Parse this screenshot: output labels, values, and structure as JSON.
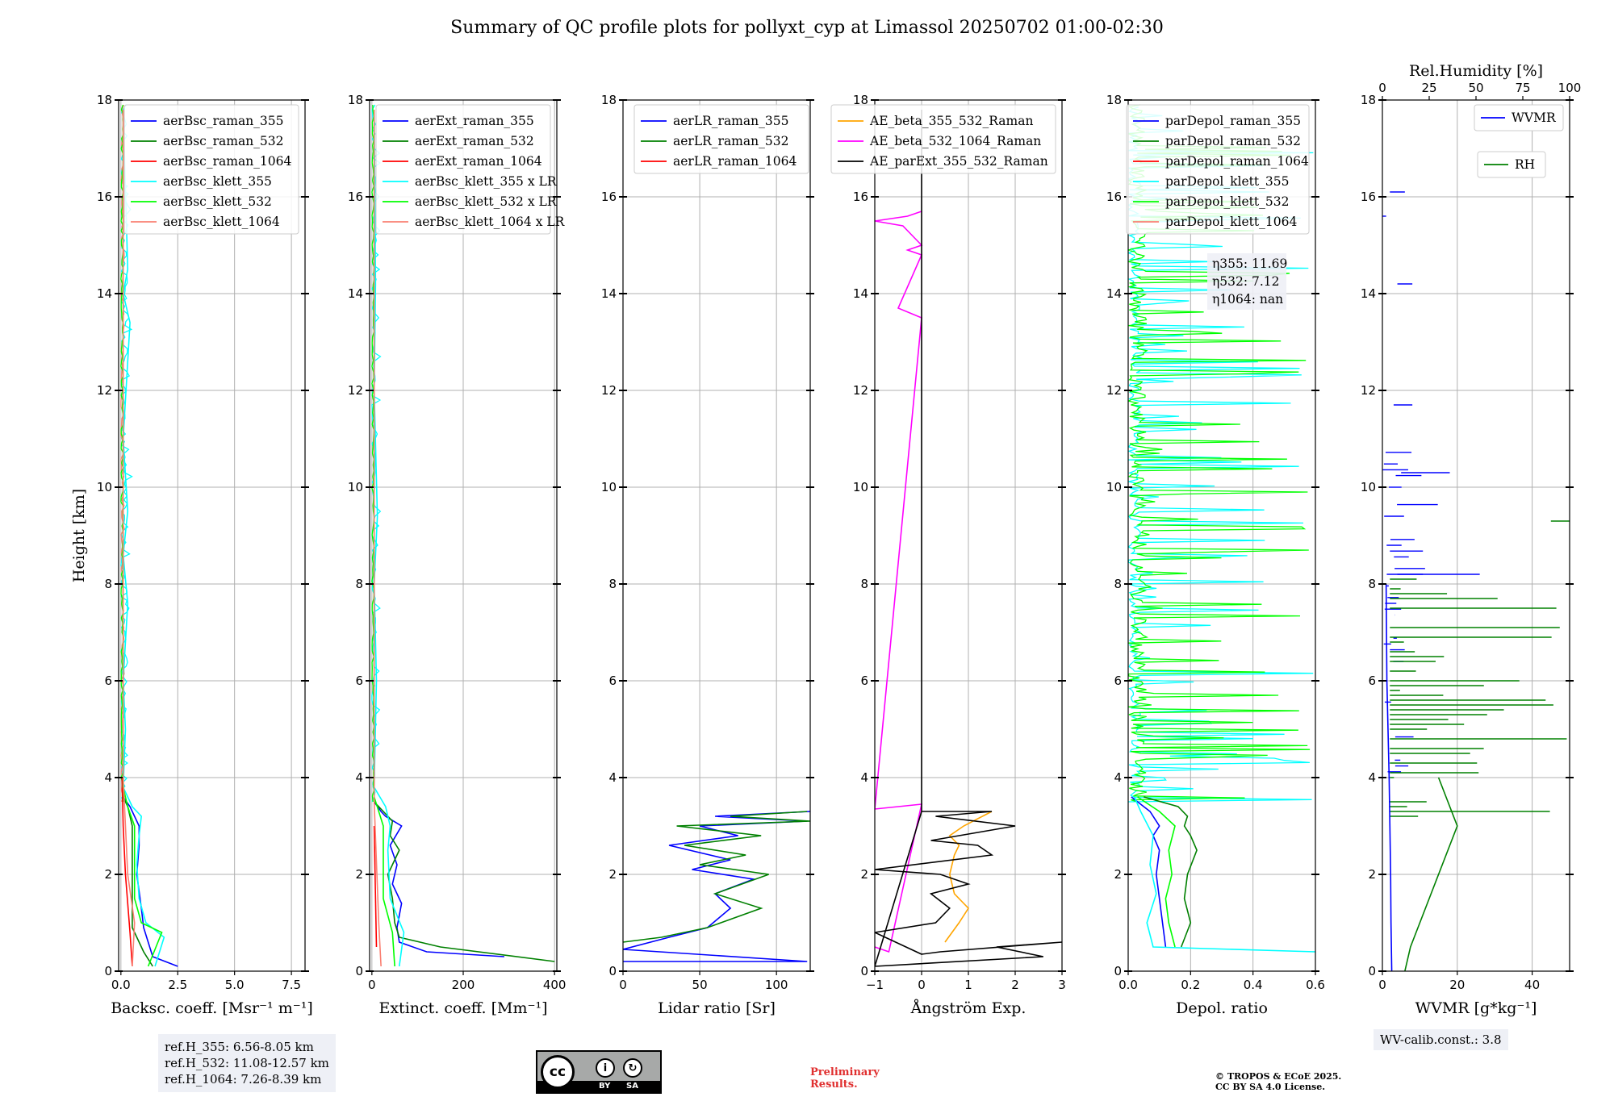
{
  "title": "Summary of QC profile plots for pollyxt_cyp at Limassol 20250702 01:00-02:30",
  "ref_heights": [
    "ref.H_355: 6.56-8.05 km",
    "ref.H_532: 11.08-12.57 km",
    "ref.H_1064: 7.26-8.39 km"
  ],
  "wv_calib": "WV-calib.const.: 3.8",
  "preliminary": [
    "Preliminary",
    "Results."
  ],
  "copyright": [
    "© TROPOS & ECoE 2025.",
    "CC BY SA 4.0 License."
  ],
  "license_badge": {
    "by": "BY",
    "sa": "SA",
    "cc": "cc"
  },
  "colors": {
    "blue": "#0000ff",
    "green": "#008000",
    "red": "#ff0000",
    "cyan": "#00ffff",
    "lime": "#00ff00",
    "salmon": "#fa8072",
    "orange": "#ffa500",
    "magenta": "#ff00ff",
    "black": "#000000"
  },
  "chart_data": [
    {
      "type": "line",
      "ylabel": "Height [km]",
      "ylim": [
        0,
        18
      ],
      "yticks": [
        0,
        2,
        4,
        6,
        8,
        10,
        12,
        14,
        16,
        18
      ],
      "xlabel": "Backsc. coeff. [Msr⁻¹ m⁻¹]",
      "xlim": [
        -0.1,
        8.1
      ],
      "xticks": [
        0,
        2.5,
        5.0,
        7.5
      ],
      "xtick_labels": [
        "0.0",
        "2.5",
        "5.0",
        "7.5"
      ],
      "grid": true,
      "legend": "top-right",
      "series": [
        {
          "name": "aerBsc_raman_355",
          "color": "blue",
          "x": [
            2.5,
            1.4,
            1.2,
            1.0,
            0.9,
            0.7,
            0.8,
            0.8,
            0.7,
            0.6,
            0.4,
            0.1
          ],
          "y": [
            0.1,
            0.3,
            0.6,
            0.9,
            1.3,
            2.0,
            2.6,
            3.0,
            3.1,
            3.2,
            3.4,
            3.6
          ]
        },
        {
          "name": "aerBsc_raman_532",
          "color": "green",
          "x": [
            1.4,
            1.0,
            0.5,
            0.5,
            0.5,
            0.5,
            0.5,
            0.4,
            0.3,
            0.1
          ],
          "y": [
            0.1,
            0.4,
            0.9,
            1.3,
            2.0,
            2.6,
            3.0,
            3.2,
            3.4,
            3.6
          ]
        },
        {
          "name": "aerBsc_raman_1064",
          "color": "red",
          "x": [
            0.5,
            0.4,
            0.2,
            0.1,
            0.05
          ],
          "y": [
            0.1,
            0.8,
            2.0,
            3.0,
            4.0
          ]
        },
        {
          "name": "aerBsc_klett_355",
          "color": "cyan",
          "x": [
            1.5,
            1.9,
            1.1,
            0.8,
            0.7,
            0.8,
            0.9,
            0.5,
            0.1,
            0.2,
            0.1,
            0.3,
            0.1,
            0.3,
            0.1,
            0.4,
            0.1,
            0.3,
            0.1
          ],
          "y": [
            0.1,
            0.7,
            1.0,
            1.5,
            2.2,
            2.8,
            3.2,
            3.4,
            3.8,
            5.0,
            6.0,
            7.6,
            8.6,
            9.5,
            11.0,
            13.4,
            14.0,
            14.5,
            17.8
          ]
        },
        {
          "name": "aerBsc_klett_532",
          "color": "lime",
          "x": [
            1.2,
            1.8,
            0.9,
            0.6,
            0.6,
            0.6,
            0.3,
            0.1,
            0.1
          ],
          "y": [
            0.1,
            0.8,
            1.0,
            1.5,
            2.5,
            3.0,
            3.4,
            3.8,
            17.8
          ]
        },
        {
          "name": "aerBsc_klett_1064",
          "color": "salmon",
          "x": [
            0.5,
            0.6,
            0.3,
            0.2,
            0.1,
            0.1
          ],
          "y": [
            0.1,
            1.0,
            2.0,
            3.0,
            4.0,
            17.8
          ]
        }
      ]
    },
    {
      "type": "line",
      "ylim": [
        0,
        18
      ],
      "yticks": [
        0,
        2,
        4,
        6,
        8,
        10,
        12,
        14,
        16,
        18
      ],
      "xlabel": "Extinct. coeff. [Mm⁻¹]",
      "xlim": [
        -5,
        405
      ],
      "xticks": [
        0,
        200,
        400
      ],
      "xtick_labels": [
        "0",
        "200",
        "400"
      ],
      "grid": true,
      "legend": "top-right",
      "series": [
        {
          "name": "aerExt_raman_355",
          "color": "blue",
          "x": [
            290,
            120,
            60,
            55,
            65,
            45,
            55,
            40,
            65,
            30,
            20,
            5
          ],
          "y": [
            0.3,
            0.4,
            0.6,
            0.9,
            1.4,
            1.8,
            2.2,
            2.6,
            3.0,
            3.2,
            3.3,
            3.5
          ]
        },
        {
          "name": "aerExt_raman_532",
          "color": "green",
          "x": [
            400,
            150,
            60,
            50,
            45,
            35,
            60,
            40,
            45,
            25,
            5
          ],
          "y": [
            0.2,
            0.5,
            0.7,
            1.0,
            1.5,
            2.0,
            2.5,
            2.8,
            3.1,
            3.3,
            3.5
          ]
        },
        {
          "name": "aerExt_raman_1064",
          "color": "red",
          "x": [
            10,
            5
          ],
          "y": [
            0.5,
            3.0
          ]
        },
        {
          "name": "aerBsc_klett_355 x LR",
          "color": "cyan",
          "x": [
            60,
            70,
            40,
            35,
            40,
            30,
            5,
            10,
            5,
            12,
            5,
            8,
            5
          ],
          "y": [
            0.1,
            0.8,
            1.5,
            2.5,
            3.0,
            3.4,
            3.8,
            6.0,
            8.0,
            9.4,
            12.0,
            14.2,
            17.8
          ]
        },
        {
          "name": "aerBsc_klett_532 x LR",
          "color": "lime",
          "x": [
            50,
            45,
            25,
            25,
            5,
            5
          ],
          "y": [
            0.1,
            0.8,
            1.5,
            3.0,
            3.6,
            17.8
          ]
        },
        {
          "name": "aerBsc_klett_1064 x LR",
          "color": "salmon",
          "x": [
            20,
            15,
            5,
            5
          ],
          "y": [
            0.1,
            1.0,
            3.5,
            17.8
          ]
        }
      ],
      "hidden_text": [
        "1064",
        "LR"
      ]
    },
    {
      "type": "line",
      "ylim": [
        0,
        18
      ],
      "yticks": [
        0,
        2,
        4,
        6,
        8,
        10,
        12,
        14,
        16,
        18
      ],
      "xlabel": "Lidar ratio [Sr]",
      "xlim": [
        0,
        122
      ],
      "xticks": [
        0,
        50,
        100
      ],
      "xtick_labels": [
        "0",
        "50",
        "100"
      ],
      "grid": true,
      "legend": "top-right",
      "series": [
        {
          "name": "aerLR_raman_355",
          "color": "blue",
          "x": [
            0,
            120,
            0,
            30,
            55,
            70,
            60,
            85,
            45,
            70,
            30,
            75,
            50,
            120,
            60,
            122
          ],
          "y": [
            0.2,
            0.2,
            0.45,
            0.7,
            0.9,
            1.3,
            1.6,
            1.9,
            2.1,
            2.3,
            2.6,
            2.8,
            3.0,
            3.1,
            3.2,
            3.3
          ]
        },
        {
          "name": "aerLR_raman_532",
          "color": "green",
          "x": [
            0,
            25,
            55,
            90,
            60,
            95,
            50,
            80,
            40,
            90,
            35,
            122,
            70,
            120
          ],
          "y": [
            0.6,
            0.7,
            0.9,
            1.3,
            1.6,
            2.0,
            2.2,
            2.4,
            2.6,
            2.8,
            3.0,
            3.1,
            3.2,
            3.3
          ]
        },
        {
          "name": "aerLR_raman_1064",
          "color": "red",
          "x": [],
          "y": []
        }
      ]
    },
    {
      "type": "line",
      "ylim": [
        0,
        18
      ],
      "yticks": [
        0,
        2,
        4,
        6,
        8,
        10,
        12,
        14,
        16,
        18
      ],
      "xlabel": "Ångström Exp.",
      "xlim": [
        -1,
        3
      ],
      "xticks": [
        -1,
        0,
        1,
        2,
        3
      ],
      "xtick_labels": [
        "−1",
        "0",
        "1",
        "2",
        "3"
      ],
      "grid": true,
      "legend": "top-right",
      "series": [
        {
          "name": "AE_beta_355_532_Raman",
          "color": "orange",
          "x": [
            0.5,
            0.8,
            1.0,
            0.7,
            0.6,
            0.7,
            0.8,
            0.6,
            0.9,
            1.5
          ],
          "y": [
            0.6,
            1.0,
            1.3,
            1.6,
            2.0,
            2.4,
            2.6,
            2.8,
            3.0,
            3.3
          ]
        },
        {
          "name": "AE_beta_532_1064_Raman",
          "color": "magenta",
          "x": [
            -1,
            -0.7,
            0,
            -1,
            0,
            -0.5,
            0,
            -0.3,
            0,
            -0.3,
            -0.4,
            -1,
            -0.3,
            0
          ],
          "y": [
            0.5,
            0.4,
            3.45,
            3.35,
            13.5,
            13.7,
            14.8,
            14.9,
            15.0,
            15.3,
            15.4,
            15.5,
            15.6,
            15.7
          ]
        },
        {
          "name": "AE_parExt_355_532_Raman",
          "color": "black",
          "x": [
            0,
            0,
            -1,
            2.6,
            1.6,
            3,
            0.4,
            0,
            -1,
            0.3,
            0.6,
            0.2,
            1.0,
            0.4,
            -1,
            1.5,
            1.2,
            0.2,
            2.0,
            0.3,
            1.5,
            0.2,
            0,
            0
          ],
          "y": [
            17.8,
            3.3,
            0.1,
            0.3,
            0.5,
            0.6,
            0.4,
            0.35,
            0.8,
            1.0,
            1.3,
            1.6,
            1.8,
            2.0,
            2.1,
            2.4,
            2.6,
            2.7,
            3.0,
            3.2,
            3.3,
            3.3,
            3.3,
            3.3
          ]
        }
      ]
    },
    {
      "type": "line",
      "ylim": [
        0,
        18
      ],
      "yticks": [
        0,
        2,
        4,
        6,
        8,
        10,
        12,
        14,
        16,
        18
      ],
      "xlabel": "Depol. ratio",
      "xlim": [
        0,
        0.6
      ],
      "xticks": [
        0,
        0.2,
        0.4,
        0.6
      ],
      "xtick_labels": [
        "0.0",
        "0.2",
        "0.4",
        "0.6"
      ],
      "grid": true,
      "legend": "top-right",
      "annotations": [
        "η355: 11.69",
        "η532: 7.12",
        "η1064: nan"
      ],
      "series": [
        {
          "name": "parDepol_raman_355",
          "color": "blue",
          "x": [
            0.12,
            0.11,
            0.1,
            0.09,
            0.1,
            0.08,
            0.1,
            0.07,
            0.03,
            0.01
          ],
          "y": [
            0.5,
            1.0,
            1.5,
            2.0,
            2.5,
            2.8,
            3.0,
            3.3,
            3.5,
            3.6
          ]
        },
        {
          "name": "parDepol_raman_532",
          "color": "green",
          "x": [
            0.17,
            0.2,
            0.18,
            0.19,
            0.22,
            0.2,
            0.18,
            0.19,
            0.16,
            0.05
          ],
          "y": [
            0.5,
            1.0,
            1.5,
            2.0,
            2.5,
            2.8,
            3.0,
            3.2,
            3.4,
            3.6
          ]
        },
        {
          "name": "parDepol_raman_1064",
          "color": "red",
          "x": [],
          "y": []
        },
        {
          "name": "parDepol_klett_355",
          "color": "cyan",
          "x": [
            0.6,
            0.08,
            0.06,
            0.09,
            0.07,
            0.08,
            0.04,
            0.02
          ],
          "y": [
            0.4,
            0.5,
            1.0,
            1.6,
            2.2,
            2.8,
            3.3,
            3.6
          ]
        },
        {
          "name": "parDepol_klett_532",
          "color": "lime",
          "x": [
            0.15,
            0.13,
            0.12,
            0.14,
            0.13,
            0.15,
            0.1,
            0.03
          ],
          "y": [
            0.5,
            1.0,
            1.5,
            2.0,
            2.5,
            3.0,
            3.3,
            3.6
          ]
        },
        {
          "name": "parDepol_klett_1064",
          "color": "salmon",
          "x": [],
          "y": []
        }
      ]
    },
    {
      "type": "line",
      "ylim": [
        0,
        18
      ],
      "yticks": [
        0,
        2,
        4,
        6,
        8,
        10,
        12,
        14,
        16,
        18
      ],
      "xlabel": "WVMR [g*kg⁻¹]",
      "xlim": [
        0,
        50
      ],
      "xticks": [
        0,
        20,
        40
      ],
      "xtick_labels": [
        "0",
        "20",
        "40"
      ],
      "top_xlabel": "Rel.Humidity [%]",
      "top_xticks": [
        0,
        25,
        50,
        75,
        100
      ],
      "grid": true,
      "series": [
        {
          "name": "WVMR",
          "color": "blue",
          "x": [
            2.5,
            2.3,
            2.2,
            2.0,
            1.8,
            1.5,
            1.2,
            1.0
          ],
          "y": [
            0,
            1.0,
            2.0,
            3.0,
            4.0,
            5.0,
            6.0,
            8.0
          ]
        },
        {
          "name": "RH",
          "color": "green",
          "x_rh": [
            12,
            15,
            20,
            25,
            30,
            35,
            40,
            35,
            30
          ],
          "y": [
            0,
            0.5,
            1.0,
            1.5,
            2.0,
            2.5,
            3.0,
            3.5,
            4.0
          ]
        }
      ]
    }
  ]
}
